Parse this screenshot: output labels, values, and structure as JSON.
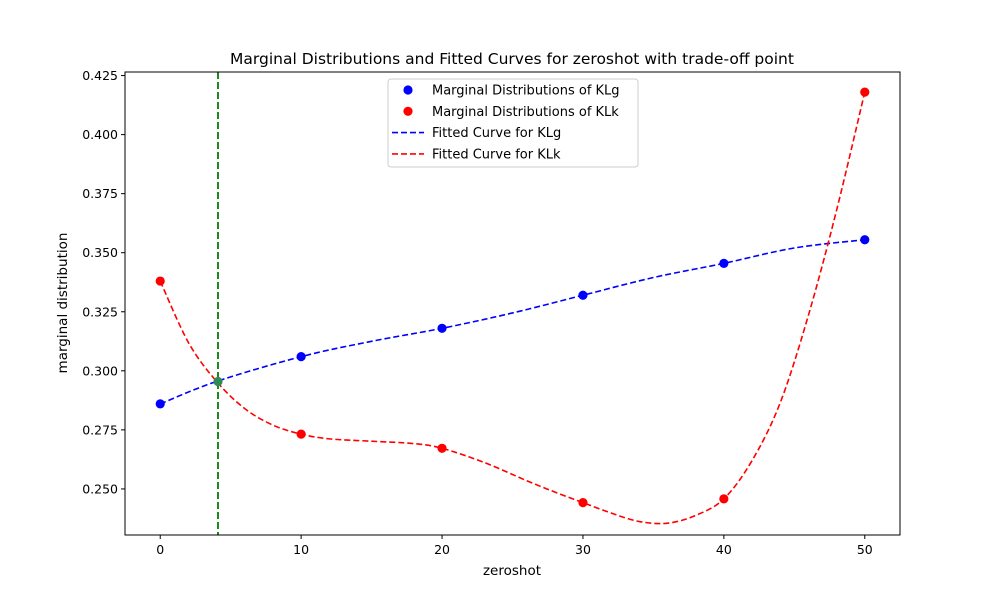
{
  "chart_data": {
    "type": "scatter",
    "title": "Marginal Distributions and Fitted Curves for zeroshot with trade-off point",
    "xlabel": "zeroshot",
    "ylabel": "marginal distribution",
    "xlim": [
      -2.5,
      52.5
    ],
    "ylim": [
      0.2305,
      0.4265
    ],
    "xticks": [
      0,
      10,
      20,
      30,
      40,
      50
    ],
    "yticks": [
      0.25,
      0.275,
      0.3,
      0.325,
      0.35,
      0.375,
      0.4,
      0.425
    ],
    "ytick_labels": [
      "0.250",
      "0.275",
      "0.300",
      "0.325",
      "0.350",
      "0.375",
      "0.400",
      "0.425"
    ],
    "legend_position": "upper-center",
    "series": [
      {
        "name": "Marginal Distributions of KLg",
        "kind": "points",
        "color": "#0000ff",
        "x": [
          0,
          10,
          20,
          30,
          40,
          50
        ],
        "y": [
          0.286,
          0.306,
          0.318,
          0.332,
          0.3455,
          0.3555
        ]
      },
      {
        "name": "Marginal Distributions of KLk",
        "kind": "points",
        "color": "#ff0000",
        "x": [
          0,
          10,
          20,
          30,
          40,
          50
        ],
        "y": [
          0.338,
          0.2732,
          0.2672,
          0.2442,
          0.2458,
          0.418
        ]
      },
      {
        "name": "Fitted Curve for KLg",
        "kind": "dashed-line",
        "color": "#0000ff",
        "x": [
          0,
          4,
          10,
          15,
          20,
          25,
          30,
          35,
          40,
          45,
          50
        ],
        "y": [
          0.286,
          0.2955,
          0.306,
          0.3125,
          0.318,
          0.3245,
          0.332,
          0.3395,
          0.3455,
          0.352,
          0.3555
        ]
      },
      {
        "name": "Fitted Curve for KLk",
        "kind": "dashed-line",
        "color": "#ff0000",
        "x": [
          0,
          2,
          4,
          6,
          8,
          10,
          12,
          15,
          18,
          20,
          23,
          26,
          28,
          30,
          32,
          34,
          36,
          38,
          40,
          42,
          44,
          46,
          48,
          50
        ],
        "y": [
          0.338,
          0.312,
          0.2955,
          0.284,
          0.277,
          0.2732,
          0.2712,
          0.2702,
          0.2692,
          0.2672,
          0.2612,
          0.2535,
          0.2487,
          0.2442,
          0.2398,
          0.2362,
          0.2355,
          0.2388,
          0.2458,
          0.262,
          0.2865,
          0.3235,
          0.368,
          0.418
        ]
      }
    ],
    "tradeoff_point": {
      "x": 4.1,
      "y": 0.2955,
      "marker_color": "#2e8b57"
    },
    "tradeoff_line": {
      "x": 4.1,
      "color": "#008000",
      "style": "dashed"
    }
  }
}
